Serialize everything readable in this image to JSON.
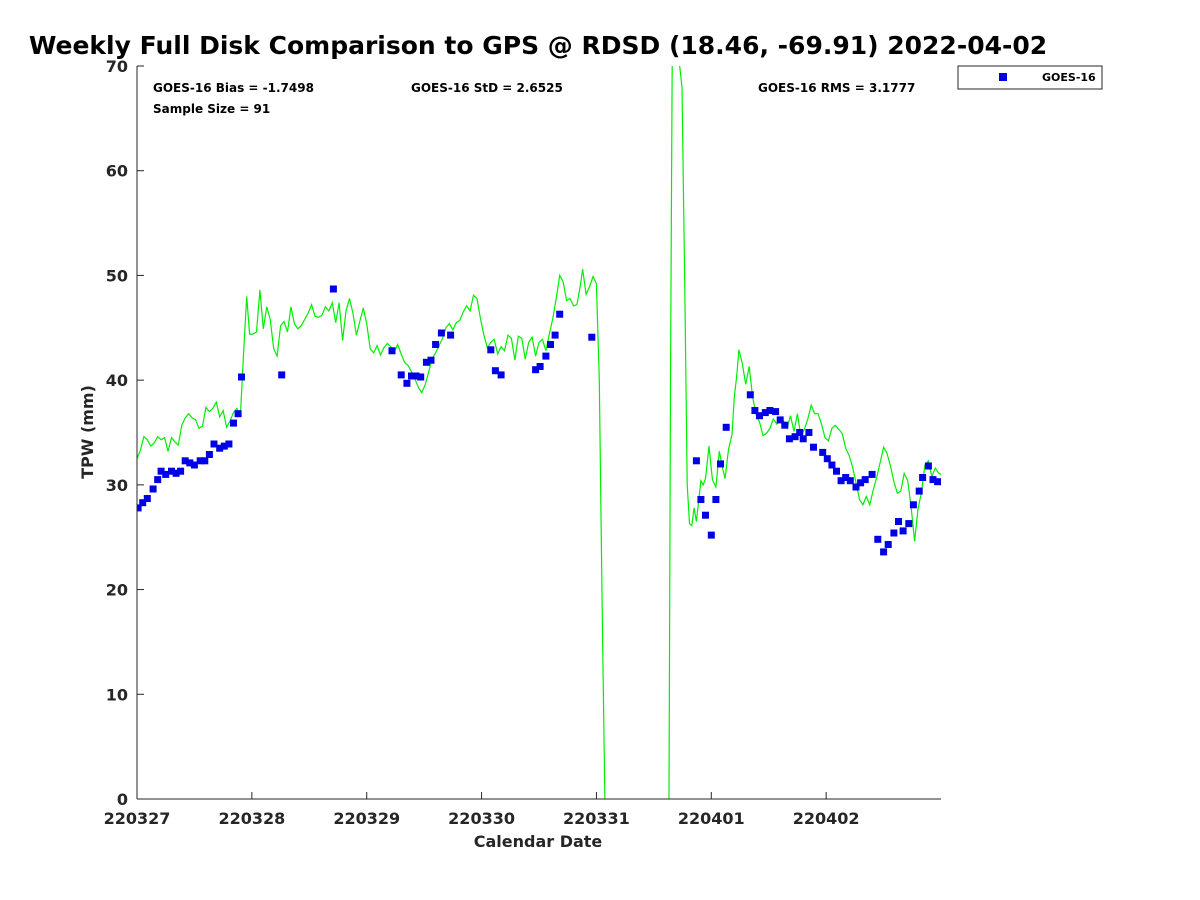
{
  "chart_data": {
    "type": "scatter",
    "title": "Weekly Full Disk Comparison to GPS @ RDSD (18.46, -69.91) 2022-04-02",
    "xlabel": "Calendar Date",
    "ylabel": "TPW (mm)",
    "xlim": [
      0,
      7
    ],
    "ylim": [
      0,
      70
    ],
    "x_tick_values": [
      0,
      1,
      2,
      3,
      4,
      5,
      6
    ],
    "x_tick_labels": [
      "220327",
      "220328",
      "220329",
      "220330",
      "220331",
      "220401",
      "220402"
    ],
    "y_ticks": [
      0,
      10,
      20,
      30,
      40,
      50,
      60,
      70
    ],
    "grid": false,
    "legend_position": "top-right outside",
    "stats": {
      "bias": "GOES-16 Bias = -1.7498",
      "std": "GOES-16 StD = 2.6525",
      "rms": "GOES-16 RMS = 3.1777",
      "sample": "Sample Size = 91"
    },
    "series": [
      {
        "name": "GOES-16",
        "marker": "square",
        "color": "#0000e6",
        "points": [
          [
            0.01,
            27.8
          ],
          [
            0.05,
            28.3
          ],
          [
            0.09,
            28.7
          ],
          [
            0.14,
            29.6
          ],
          [
            0.18,
            30.5
          ],
          [
            0.21,
            31.3
          ],
          [
            0.25,
            31.0
          ],
          [
            0.3,
            31.3
          ],
          [
            0.34,
            31.1
          ],
          [
            0.38,
            31.3
          ],
          [
            0.42,
            32.3
          ],
          [
            0.46,
            32.1
          ],
          [
            0.5,
            31.9
          ],
          [
            0.55,
            32.3
          ],
          [
            0.59,
            32.3
          ],
          [
            0.63,
            32.9
          ],
          [
            0.67,
            33.9
          ],
          [
            0.72,
            33.5
          ],
          [
            0.76,
            33.7
          ],
          [
            0.8,
            33.9
          ],
          [
            0.84,
            35.9
          ],
          [
            0.88,
            36.8
          ],
          [
            0.91,
            40.3
          ],
          [
            1.26,
            40.5
          ],
          [
            1.71,
            48.7
          ],
          [
            2.22,
            42.8
          ],
          [
            2.3,
            40.5
          ],
          [
            2.35,
            39.7
          ],
          [
            2.39,
            40.4
          ],
          [
            2.43,
            40.4
          ],
          [
            2.47,
            40.3
          ],
          [
            2.52,
            41.7
          ],
          [
            2.56,
            41.9
          ],
          [
            2.6,
            43.4
          ],
          [
            2.65,
            44.5
          ],
          [
            2.73,
            44.3
          ],
          [
            3.08,
            42.9
          ],
          [
            3.12,
            40.9
          ],
          [
            3.17,
            40.5
          ],
          [
            3.47,
            41.0
          ],
          [
            3.51,
            41.3
          ],
          [
            3.56,
            42.3
          ],
          [
            3.6,
            43.4
          ],
          [
            3.64,
            44.3
          ],
          [
            3.68,
            46.3
          ],
          [
            3.96,
            44.1
          ],
          [
            4.87,
            32.3
          ],
          [
            4.91,
            28.6
          ],
          [
            4.95,
            27.1
          ],
          [
            5.0,
            25.2
          ],
          [
            5.04,
            28.6
          ],
          [
            5.08,
            32.0
          ],
          [
            5.13,
            35.5
          ],
          [
            5.34,
            38.6
          ],
          [
            5.38,
            37.1
          ],
          [
            5.42,
            36.6
          ],
          [
            5.47,
            36.9
          ],
          [
            5.51,
            37.1
          ],
          [
            5.56,
            37.0
          ],
          [
            5.6,
            36.2
          ],
          [
            5.64,
            35.7
          ],
          [
            5.68,
            34.4
          ],
          [
            5.73,
            34.6
          ],
          [
            5.77,
            35.0
          ],
          [
            5.8,
            34.4
          ],
          [
            5.85,
            35.0
          ],
          [
            5.89,
            33.6
          ],
          [
            5.97,
            33.1
          ],
          [
            6.01,
            32.5
          ],
          [
            6.05,
            31.9
          ],
          [
            6.09,
            31.3
          ],
          [
            6.13,
            30.4
          ],
          [
            6.17,
            30.7
          ],
          [
            6.21,
            30.4
          ],
          [
            6.26,
            29.8
          ],
          [
            6.3,
            30.2
          ],
          [
            6.34,
            30.5
          ],
          [
            6.4,
            31.0
          ],
          [
            6.45,
            24.8
          ],
          [
            6.5,
            23.6
          ],
          [
            6.54,
            24.3
          ],
          [
            6.59,
            25.4
          ],
          [
            6.63,
            26.5
          ],
          [
            6.67,
            25.6
          ],
          [
            6.72,
            26.3
          ],
          [
            6.76,
            28.1
          ],
          [
            6.81,
            29.4
          ],
          [
            6.84,
            30.7
          ],
          [
            6.89,
            31.8
          ],
          [
            6.93,
            30.5
          ],
          [
            6.97,
            30.3
          ]
        ]
      },
      {
        "name": "",
        "line": true,
        "color": "#00ee00",
        "points": [
          [
            0.0,
            32.5
          ],
          [
            0.03,
            33.3
          ],
          [
            0.06,
            34.6
          ],
          [
            0.09,
            34.3
          ],
          [
            0.12,
            33.7
          ],
          [
            0.15,
            34.0
          ],
          [
            0.18,
            34.6
          ],
          [
            0.21,
            34.3
          ],
          [
            0.24,
            34.5
          ],
          [
            0.27,
            33.2
          ],
          [
            0.3,
            34.5
          ],
          [
            0.33,
            34.1
          ],
          [
            0.36,
            33.8
          ],
          [
            0.39,
            35.7
          ],
          [
            0.42,
            36.4
          ],
          [
            0.45,
            36.8
          ],
          [
            0.48,
            36.4
          ],
          [
            0.51,
            36.2
          ],
          [
            0.54,
            35.4
          ],
          [
            0.57,
            35.6
          ],
          [
            0.6,
            37.4
          ],
          [
            0.63,
            37.0
          ],
          [
            0.66,
            37.3
          ],
          [
            0.69,
            37.9
          ],
          [
            0.72,
            36.5
          ],
          [
            0.75,
            37.1
          ],
          [
            0.78,
            35.5
          ],
          [
            0.81,
            36.1
          ],
          [
            0.84,
            36.9
          ],
          [
            0.87,
            37.3
          ],
          [
            0.9,
            36.6
          ],
          [
            0.93,
            43.0
          ],
          [
            0.955,
            48.0
          ],
          [
            0.98,
            44.4
          ],
          [
            1.01,
            44.4
          ],
          [
            1.04,
            44.6
          ],
          [
            1.07,
            48.6
          ],
          [
            1.1,
            44.9
          ],
          [
            1.13,
            47.0
          ],
          [
            1.16,
            45.8
          ],
          [
            1.19,
            43.0
          ],
          [
            1.22,
            42.3
          ],
          [
            1.25,
            45.2
          ],
          [
            1.28,
            45.6
          ],
          [
            1.31,
            44.6
          ],
          [
            1.34,
            47.0
          ],
          [
            1.37,
            45.4
          ],
          [
            1.4,
            44.9
          ],
          [
            1.43,
            45.2
          ],
          [
            1.46,
            45.8
          ],
          [
            1.49,
            46.4
          ],
          [
            1.52,
            47.2
          ],
          [
            1.55,
            46.1
          ],
          [
            1.58,
            46.0
          ],
          [
            1.61,
            46.2
          ],
          [
            1.64,
            47.0
          ],
          [
            1.67,
            46.6
          ],
          [
            1.7,
            47.4
          ],
          [
            1.73,
            45.5
          ],
          [
            1.76,
            47.4
          ],
          [
            1.79,
            43.8
          ],
          [
            1.82,
            46.6
          ],
          [
            1.85,
            47.8
          ],
          [
            1.88,
            46.4
          ],
          [
            1.91,
            44.3
          ],
          [
            1.94,
            45.6
          ],
          [
            1.97,
            46.9
          ],
          [
            2.0,
            45.4
          ],
          [
            2.03,
            43.0
          ],
          [
            2.06,
            42.6
          ],
          [
            2.09,
            43.3
          ],
          [
            2.12,
            42.4
          ],
          [
            2.15,
            43.1
          ],
          [
            2.18,
            43.5
          ],
          [
            2.21,
            43.2
          ],
          [
            2.24,
            42.7
          ],
          [
            2.27,
            43.4
          ],
          [
            2.3,
            42.5
          ],
          [
            2.33,
            41.7
          ],
          [
            2.36,
            41.4
          ],
          [
            2.39,
            40.8
          ],
          [
            2.42,
            40.1
          ],
          [
            2.45,
            39.3
          ],
          [
            2.48,
            38.8
          ],
          [
            2.51,
            39.6
          ],
          [
            2.54,
            40.8
          ],
          [
            2.57,
            42.1
          ],
          [
            2.6,
            42.6
          ],
          [
            2.63,
            43.3
          ],
          [
            2.66,
            44.0
          ],
          [
            2.69,
            45.0
          ],
          [
            2.72,
            45.4
          ],
          [
            2.75,
            44.8
          ],
          [
            2.78,
            45.5
          ],
          [
            2.81,
            45.7
          ],
          [
            2.84,
            46.5
          ],
          [
            2.87,
            47.1
          ],
          [
            2.9,
            46.6
          ],
          [
            2.93,
            48.1
          ],
          [
            2.96,
            47.8
          ],
          [
            2.99,
            45.9
          ],
          [
            3.02,
            44.3
          ],
          [
            3.05,
            43.1
          ],
          [
            3.08,
            43.6
          ],
          [
            3.11,
            43.9
          ],
          [
            3.14,
            42.5
          ],
          [
            3.17,
            43.2
          ],
          [
            3.2,
            42.8
          ],
          [
            3.23,
            44.3
          ],
          [
            3.26,
            44.0
          ],
          [
            3.29,
            41.9
          ],
          [
            3.32,
            44.2
          ],
          [
            3.35,
            44.0
          ],
          [
            3.38,
            42.0
          ],
          [
            3.41,
            43.6
          ],
          [
            3.44,
            44.1
          ],
          [
            3.47,
            42.3
          ],
          [
            3.5,
            43.6
          ],
          [
            3.53,
            43.9
          ],
          [
            3.56,
            42.8
          ],
          [
            3.59,
            44.4
          ],
          [
            3.62,
            45.9
          ],
          [
            3.65,
            47.8
          ],
          [
            3.68,
            50.0
          ],
          [
            3.71,
            49.4
          ],
          [
            3.74,
            47.6
          ],
          [
            3.77,
            47.8
          ],
          [
            3.8,
            47.1
          ],
          [
            3.83,
            47.2
          ],
          [
            3.86,
            49.0
          ],
          [
            3.88,
            50.6
          ],
          [
            3.91,
            48.2
          ],
          [
            3.94,
            48.9
          ],
          [
            3.97,
            49.9
          ],
          [
            4.0,
            49.2
          ],
          [
            4.025,
            40.0
          ],
          [
            4.05,
            18.0
          ],
          [
            4.08,
            -5.0
          ],
          [
            4.63,
            -5.0
          ],
          [
            4.645,
            40.0
          ],
          [
            4.66,
            70.5
          ],
          [
            4.72,
            70.5
          ],
          [
            4.745,
            68.0
          ],
          [
            4.77,
            48.0
          ],
          [
            4.79,
            30.0
          ],
          [
            4.81,
            26.3
          ],
          [
            4.83,
            26.1
          ],
          [
            4.85,
            27.8
          ],
          [
            4.87,
            26.5
          ],
          [
            4.89,
            28.5
          ],
          [
            4.91,
            30.4
          ],
          [
            4.93,
            30.0
          ],
          [
            4.95,
            30.6
          ],
          [
            4.98,
            33.7
          ],
          [
            5.01,
            30.5
          ],
          [
            5.04,
            29.8
          ],
          [
            5.07,
            33.2
          ],
          [
            5.1,
            31.5
          ],
          [
            5.12,
            30.6
          ],
          [
            5.15,
            33.4
          ],
          [
            5.18,
            34.8
          ],
          [
            5.2,
            38.4
          ],
          [
            5.22,
            40.3
          ],
          [
            5.24,
            42.9
          ],
          [
            5.27,
            41.6
          ],
          [
            5.3,
            39.6
          ],
          [
            5.33,
            41.3
          ],
          [
            5.36,
            38.4
          ],
          [
            5.39,
            36.7
          ],
          [
            5.42,
            36.0
          ],
          [
            5.45,
            34.7
          ],
          [
            5.48,
            34.9
          ],
          [
            5.51,
            35.4
          ],
          [
            5.54,
            36.3
          ],
          [
            5.57,
            35.8
          ],
          [
            5.6,
            36.2
          ],
          [
            5.63,
            36.1
          ],
          [
            5.66,
            35.4
          ],
          [
            5.69,
            36.6
          ],
          [
            5.72,
            35.1
          ],
          [
            5.75,
            36.8
          ],
          [
            5.78,
            34.6
          ],
          [
            5.81,
            35.3
          ],
          [
            5.84,
            36.3
          ],
          [
            5.87,
            37.6
          ],
          [
            5.9,
            36.8
          ],
          [
            5.93,
            36.8
          ],
          [
            5.96,
            35.8
          ],
          [
            5.99,
            34.5
          ],
          [
            6.02,
            34.2
          ],
          [
            6.05,
            35.4
          ],
          [
            6.08,
            35.7
          ],
          [
            6.11,
            35.3
          ],
          [
            6.14,
            34.9
          ],
          [
            6.17,
            33.5
          ],
          [
            6.2,
            32.8
          ],
          [
            6.23,
            31.7
          ],
          [
            6.26,
            30.2
          ],
          [
            6.29,
            28.6
          ],
          [
            6.32,
            28.1
          ],
          [
            6.35,
            28.9
          ],
          [
            6.38,
            28.1
          ],
          [
            6.41,
            29.5
          ],
          [
            6.44,
            30.7
          ],
          [
            6.47,
            32.1
          ],
          [
            6.5,
            33.6
          ],
          [
            6.53,
            33.0
          ],
          [
            6.56,
            31.8
          ],
          [
            6.59,
            30.3
          ],
          [
            6.62,
            29.2
          ],
          [
            6.65,
            29.4
          ],
          [
            6.68,
            31.1
          ],
          [
            6.71,
            30.4
          ],
          [
            6.74,
            27.9
          ],
          [
            6.77,
            24.6
          ],
          [
            6.8,
            27.7
          ],
          [
            6.83,
            29.3
          ],
          [
            6.86,
            31.9
          ],
          [
            6.89,
            32.3
          ],
          [
            6.92,
            30.8
          ],
          [
            6.95,
            31.6
          ],
          [
            6.98,
            31.1
          ],
          [
            7.0,
            31.0
          ]
        ]
      }
    ]
  }
}
